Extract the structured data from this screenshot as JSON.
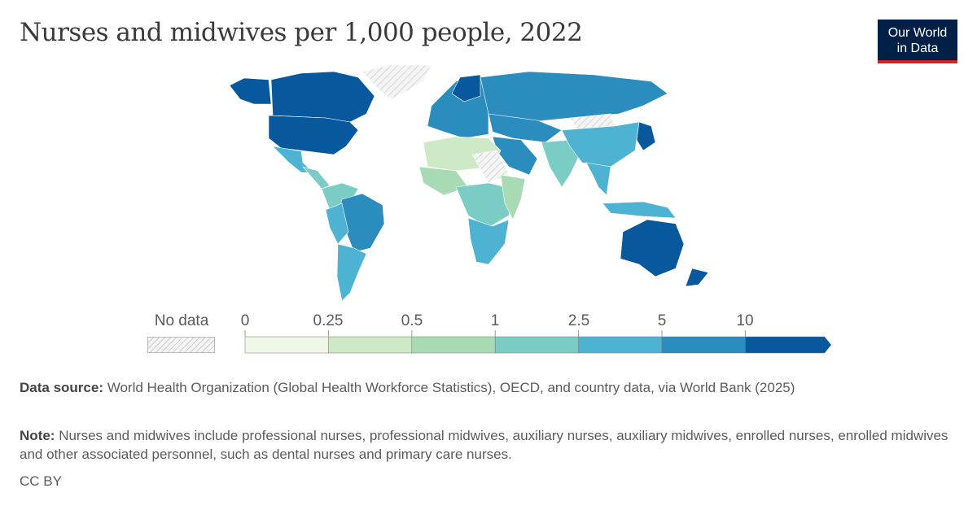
{
  "title": "Nurses and midwives per 1,000 people, 2022",
  "logo": {
    "line1": "Our World",
    "line2": "in Data"
  },
  "legend": {
    "no_data_label": "No data",
    "ticks": [
      "0",
      "0.25",
      "0.5",
      "1",
      "2.5",
      "5",
      "10"
    ],
    "colors": [
      "#eff7e7",
      "#cde9c6",
      "#a8dbb4",
      "#7bccc4",
      "#4eb3d3",
      "#2b8cbe",
      "#08589e"
    ]
  },
  "footer": {
    "source_label": "Data source:",
    "source_text": "World Health Organization (Global Health Workforce Statistics), OECD, and country data, via World Bank (2025)",
    "note_label": "Note:",
    "note_text": "Nurses and midwives include professional nurses, professional midwives, auxiliary nurses, auxiliary midwives, enrolled nurses, enrolled midwives and other associated personnel, such as dental nurses and primary care nurses.",
    "license": "CC BY"
  }
}
